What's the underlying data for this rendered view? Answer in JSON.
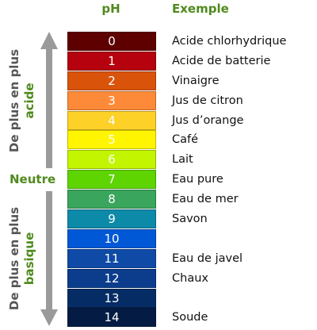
{
  "headers": {
    "ph": "pH",
    "example": "Exemple"
  },
  "labels": {
    "acid_line1": "De plus en plus",
    "acid_line2": "acide",
    "neutral": "Neutre",
    "basic_line1": "De plus en plus",
    "basic_line2": "basique"
  },
  "scale": [
    {
      "ph": "0",
      "color": "#5e0000",
      "example": "Acide chlorhydrique"
    },
    {
      "ph": "1",
      "color": "#b5020e",
      "example": "Acide de batterie"
    },
    {
      "ph": "2",
      "color": "#d9530b",
      "example": "Vinaigre"
    },
    {
      "ph": "3",
      "color": "#fd8a38",
      "example": "Jus de citron"
    },
    {
      "ph": "4",
      "color": "#fdd127",
      "example": "Jus d’orange"
    },
    {
      "ph": "5",
      "color": "#fff500",
      "example": "Café"
    },
    {
      "ph": "6",
      "color": "#c3f500",
      "example": "Lait"
    },
    {
      "ph": "7",
      "color": "#5ed400",
      "example": "Eau pure"
    },
    {
      "ph": "8",
      "color": "#3aa55c",
      "example": "Eau de mer"
    },
    {
      "ph": "9",
      "color": "#0d8aa8",
      "example": "Savon"
    },
    {
      "ph": "10",
      "color": "#0058d6",
      "example": ""
    },
    {
      "ph": "11",
      "color": "#0f4aa6",
      "example": "Eau de javel"
    },
    {
      "ph": "12",
      "color": "#0b3d8c",
      "example": "Chaux"
    },
    {
      "ph": "13",
      "color": "#062c66",
      "example": ""
    },
    {
      "ph": "14",
      "color": "#041c44",
      "example": "Soude"
    }
  ],
  "arrow_color": "#9a9a9a"
}
